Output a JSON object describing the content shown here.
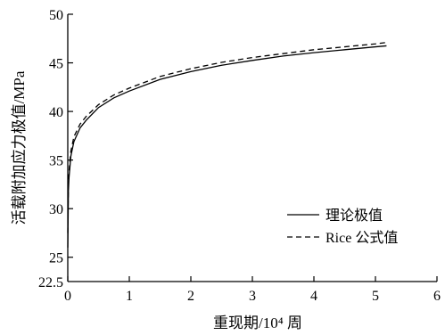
{
  "chart_data": {
    "type": "line",
    "xlabel": "重现期/10⁴ 周",
    "ylabel": "活载附加应力极值/MPa",
    "xlim": [
      0,
      6
    ],
    "ylim": [
      22.5,
      50
    ],
    "xticks": [
      "0",
      "1",
      "2",
      "3",
      "4",
      "5",
      "6"
    ],
    "yticks": [
      "22.5",
      "25",
      "30",
      "35",
      "40",
      "45",
      "50"
    ],
    "grid": false,
    "legend_position": "lower-right",
    "series": [
      {
        "name": "理论极值",
        "line_style": "solid",
        "x": [
          0.0005,
          0.01,
          0.02,
          0.05,
          0.1,
          0.2,
          0.3,
          0.5,
          0.75,
          1.0,
          1.5,
          2.0,
          2.5,
          3.0,
          3.5,
          4.0,
          4.5,
          5.0,
          5.18
        ],
        "y": [
          26.0,
          31.8,
          33.2,
          35.4,
          36.9,
          38.3,
          39.1,
          40.4,
          41.4,
          42.1,
          43.3,
          44.1,
          44.75,
          45.25,
          45.7,
          46.05,
          46.35,
          46.65,
          46.75
        ]
      },
      {
        "name": "Rice 公式值",
        "line_style": "dashed",
        "x": [
          0.0005,
          0.01,
          0.02,
          0.05,
          0.1,
          0.2,
          0.3,
          0.5,
          0.75,
          1.0,
          1.5,
          2.0,
          2.5,
          3.0,
          3.5,
          4.0,
          4.5,
          5.0,
          5.18
        ],
        "y": [
          27.5,
          32.5,
          33.8,
          35.9,
          37.4,
          38.7,
          39.5,
          40.7,
          41.7,
          42.4,
          43.6,
          44.4,
          45.05,
          45.55,
          45.95,
          46.35,
          46.65,
          46.95,
          47.1
        ]
      }
    ]
  }
}
